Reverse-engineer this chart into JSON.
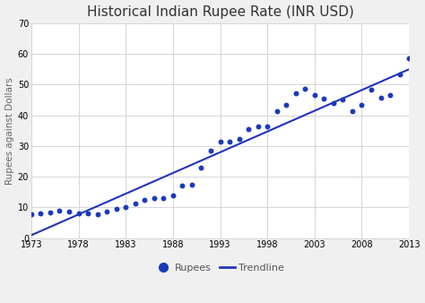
{
  "title": "Historical Indian Rupee Rate (INR USD)",
  "xlabel": "",
  "ylabel": "Rupees against Dollars",
  "xlim": [
    1973,
    2013
  ],
  "ylim": [
    0,
    70
  ],
  "xticks": [
    1973,
    1978,
    1983,
    1988,
    1993,
    1998,
    2003,
    2008,
    2013
  ],
  "yticks": [
    0,
    10,
    20,
    30,
    40,
    50,
    60,
    70
  ],
  "years": [
    1973,
    1974,
    1975,
    1976,
    1977,
    1978,
    1979,
    1980,
    1981,
    1982,
    1983,
    1984,
    1985,
    1986,
    1987,
    1988,
    1989,
    1990,
    1991,
    1992,
    1993,
    1994,
    1995,
    1996,
    1997,
    1998,
    1999,
    2000,
    2001,
    2002,
    2003,
    2004,
    2005,
    2006,
    2007,
    2008,
    2009,
    2010,
    2011,
    2012,
    2013
  ],
  "rupees": [
    7.7,
    8.1,
    8.4,
    8.9,
    8.7,
    8.2,
    8.1,
    7.9,
    8.7,
    9.5,
    10.1,
    11.4,
    12.4,
    13.1,
    13.0,
    14.0,
    17.0,
    17.5,
    23.0,
    28.5,
    31.4,
    31.4,
    32.4,
    35.5,
    36.3,
    36.5,
    41.4,
    43.3,
    47.2,
    48.6,
    46.6,
    45.3,
    44.1,
    45.2,
    41.3,
    43.5,
    48.4,
    45.7,
    46.7,
    53.4,
    58.6
  ],
  "dot_color": "#1c39bb",
  "line_color": "#2233bb",
  "bg_color": "#f0f0f0",
  "plot_bg_color": "#ffffff",
  "grid_color": "#d0d0d0",
  "title_fontsize": 11,
  "label_fontsize": 7.5,
  "tick_fontsize": 7,
  "legend_fontsize": 8
}
